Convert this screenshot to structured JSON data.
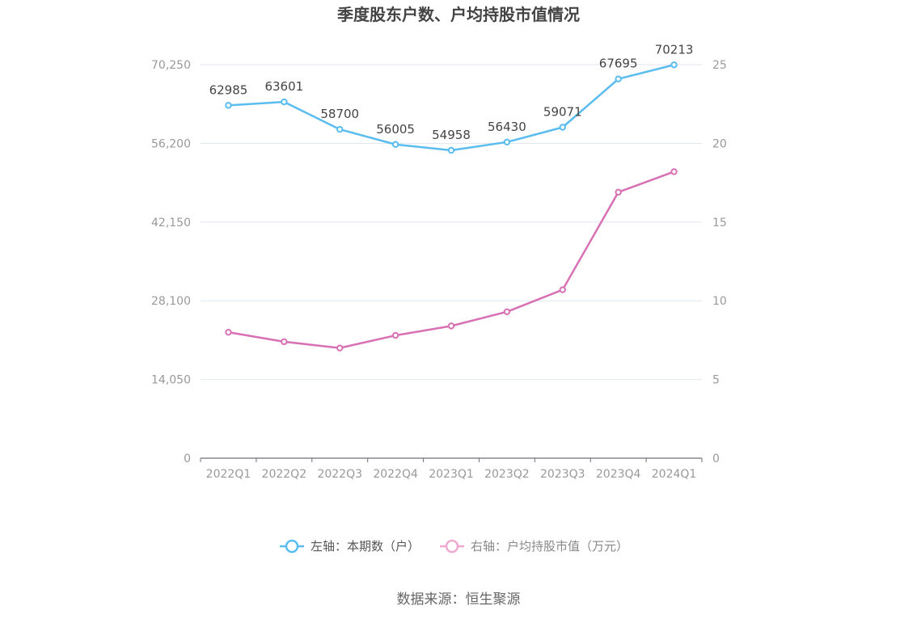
{
  "chart_data": {
    "type": "line",
    "title": "季度股东户数、户均持股市值情况",
    "categories": [
      "2022Q1",
      "2022Q2",
      "2022Q3",
      "2022Q4",
      "2023Q1",
      "2023Q2",
      "2023Q3",
      "2023Q4",
      "2024Q1"
    ],
    "left_axis": {
      "ticks": [
        "0",
        "14,050",
        "28,100",
        "42,150",
        "56,200",
        "70,250"
      ],
      "ylim": [
        0,
        70250
      ]
    },
    "right_axis": {
      "ticks": [
        "0",
        "5",
        "10",
        "15",
        "20",
        "25"
      ],
      "ylim": [
        0,
        25
      ]
    },
    "series": [
      {
        "name": "左轴：本期数（户）",
        "axis": "left",
        "color": "#5bbcf0",
        "values": [
          62985,
          63601,
          58700,
          56005,
          54958,
          56430,
          59071,
          67695,
          70213
        ],
        "labels": [
          "62985",
          "63601",
          "58700",
          "56005",
          "54958",
          "56430",
          "59071",
          "67695",
          "70213"
        ]
      },
      {
        "name": "右轴：户均持股市值（万元）",
        "axis": "right",
        "color": "#d870b4",
        "values": [
          8.0,
          7.4,
          7.0,
          7.8,
          8.4,
          9.3,
          10.7,
          16.9,
          18.2
        ]
      }
    ],
    "grid": true,
    "legend_position": "bottom",
    "source": "数据来源：恒生聚源"
  }
}
